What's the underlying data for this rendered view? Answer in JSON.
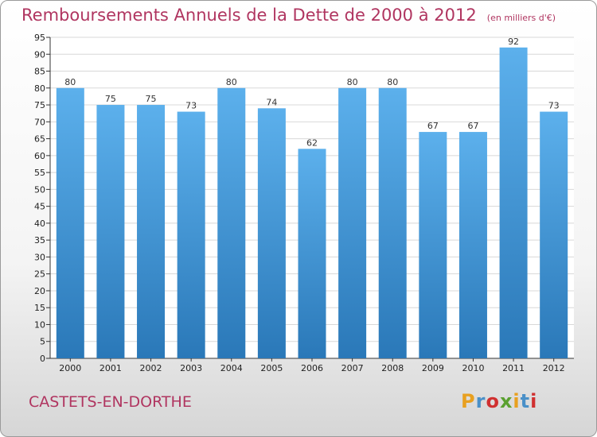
{
  "title": "Remboursements Annuels de la Dette de 2000 à 2012",
  "unit": "(en milliers d'€)",
  "commune": "CASTETS-EN-DORTHE",
  "logo": {
    "text": "Proxiti",
    "colors": [
      "#e8a020",
      "#4a90c8",
      "#d03030",
      "#5aa030",
      "#e8a020",
      "#4a90c8",
      "#d03030"
    ]
  },
  "colors": {
    "bar_top": "#5cb0ec",
    "bar_bottom": "#2a78b8",
    "title": "#b03560"
  },
  "chart_data": {
    "type": "bar",
    "categories": [
      "2000",
      "2001",
      "2002",
      "2003",
      "2004",
      "2005",
      "2006",
      "2007",
      "2008",
      "2009",
      "2010",
      "2011",
      "2012"
    ],
    "values": [
      80,
      75,
      75,
      73,
      80,
      74,
      62,
      80,
      80,
      67,
      67,
      92,
      73
    ],
    "ylim": [
      0,
      95
    ],
    "yticks": [
      0,
      5,
      10,
      15,
      20,
      25,
      30,
      35,
      40,
      45,
      50,
      55,
      60,
      65,
      70,
      75,
      80,
      85,
      90,
      95
    ],
    "grid": true,
    "legend": "none"
  }
}
